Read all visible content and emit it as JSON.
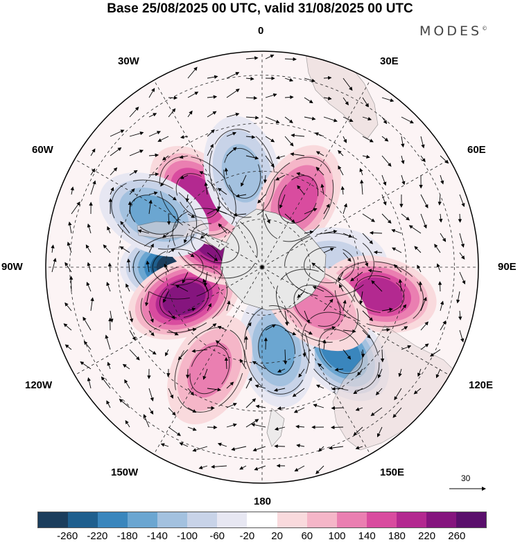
{
  "title": "Base 25/08/2025 00 UTC, valid 31/08/2025 00 UTC",
  "brand": "MODES",
  "brand_mark": "©",
  "longitude_labels": [
    "0",
    "30E",
    "60E",
    "90E",
    "120E",
    "150E",
    "180",
    "150W",
    "120W",
    "90W",
    "60W",
    "30W"
  ],
  "reference_vector": {
    "label": "30"
  },
  "colorbar": {
    "labels": [
      "-260",
      "-220",
      "-180",
      "-140",
      "-100",
      "-60",
      "-20",
      "20",
      "60",
      "100",
      "140",
      "180",
      "220",
      "260"
    ],
    "colors": [
      "#1b3d5c",
      "#1f5f8e",
      "#3a86bd",
      "#6ba6d1",
      "#a3c1df",
      "#c8d3e8",
      "#e7e7f2",
      "#ffffff",
      "#f9dadd",
      "#f5b6c8",
      "#ea7fb1",
      "#d94c9f",
      "#b32990",
      "#85157e",
      "#5a0f6c"
    ]
  },
  "anomaly_centers": [
    {
      "name": "low-90w",
      "lon": -90,
      "lat": -55,
      "value": -270
    },
    {
      "name": "high-110w",
      "lon": -112,
      "lat": -55,
      "value": 230
    },
    {
      "name": "high-60w",
      "lon": -63,
      "lat": -68,
      "value": 250
    },
    {
      "name": "high-40w",
      "lon": -42,
      "lat": -50,
      "value": 190
    },
    {
      "name": "low-70w",
      "lon": -64,
      "lat": -40,
      "value": -160
    },
    {
      "name": "low-15w",
      "lon": -12,
      "lat": -50,
      "value": -130
    },
    {
      "name": "high-25e",
      "lon": 28,
      "lat": -58,
      "value": 170
    },
    {
      "name": "low-90e",
      "lon": 88,
      "lat": -62,
      "value": -90
    },
    {
      "name": "high-100e",
      "lon": 103,
      "lat": -40,
      "value": 210
    },
    {
      "name": "low-135e",
      "lon": 137,
      "lat": -42,
      "value": -200
    },
    {
      "name": "low-170e",
      "lon": 170,
      "lat": -55,
      "value": -140
    },
    {
      "name": "high-150w",
      "lon": -153,
      "lat": -42,
      "value": 120
    },
    {
      "name": "high-135e",
      "lon": 125,
      "lat": -62,
      "value": 100
    }
  ]
}
